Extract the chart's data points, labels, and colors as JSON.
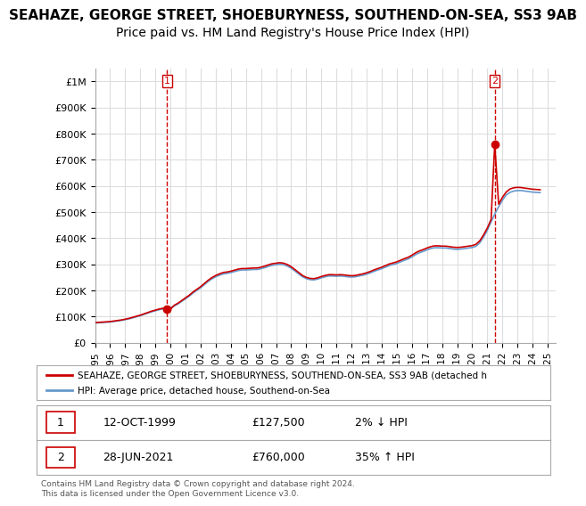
{
  "title": "SEAHAZE, GEORGE STREET, SHOEBURYNESS, SOUTHEND-ON-SEA, SS3 9AB",
  "subtitle": "Price paid vs. HM Land Registry's House Price Index (HPI)",
  "title_fontsize": 11,
  "subtitle_fontsize": 10,
  "ylim": [
    0,
    1050000
  ],
  "yticks": [
    0,
    100000,
    200000,
    300000,
    400000,
    500000,
    600000,
    700000,
    800000,
    900000,
    1000000
  ],
  "ytick_labels": [
    "£0",
    "£100K",
    "£200K",
    "£300K",
    "£400K",
    "£500K",
    "£600K",
    "£700K",
    "£800K",
    "£900K",
    "£1M"
  ],
  "xlim_start": 1995.0,
  "xlim_end": 2025.5,
  "xtick_years": [
    1995,
    1996,
    1997,
    1998,
    1999,
    2000,
    2001,
    2002,
    2003,
    2004,
    2005,
    2006,
    2007,
    2008,
    2009,
    2010,
    2011,
    2012,
    2013,
    2014,
    2015,
    2016,
    2017,
    2018,
    2019,
    2020,
    2021,
    2022,
    2023,
    2024,
    2025
  ],
  "sale1_x": 1999.78,
  "sale1_y": 127500,
  "sale1_label": "1",
  "sale1_date": "12-OCT-1999",
  "sale1_price": "£127,500",
  "sale1_hpi": "2% ↓ HPI",
  "sale2_x": 2021.49,
  "sale2_y": 760000,
  "sale2_label": "2",
  "sale2_date": "28-JUN-2021",
  "sale2_price": "£760,000",
  "sale2_hpi": "35% ↑ HPI",
  "vline1_x": 1999.78,
  "vline2_x": 2021.49,
  "red_line_color": "#cc0000",
  "blue_line_color": "#6699cc",
  "vline_color": "#cc0000",
  "grid_color": "#dddddd",
  "background_color": "#ffffff",
  "legend_label_red": "SEAHAZE, GEORGE STREET, SHOEBURYNESS, SOUTHEND-ON-SEA, SS3 9AB (detached h",
  "legend_label_blue": "HPI: Average price, detached house, Southend-on-Sea",
  "footnote": "Contains HM Land Registry data © Crown copyright and database right 2024.\nThis data is licensed under the Open Government Licence v3.0.",
  "hpi_x": [
    1995.0,
    1995.25,
    1995.5,
    1995.75,
    1996.0,
    1996.25,
    1996.5,
    1996.75,
    1997.0,
    1997.25,
    1997.5,
    1997.75,
    1998.0,
    1998.25,
    1998.5,
    1998.75,
    1999.0,
    1999.25,
    1999.5,
    1999.75,
    2000.0,
    2000.25,
    2000.5,
    2000.75,
    2001.0,
    2001.25,
    2001.5,
    2001.75,
    2002.0,
    2002.25,
    2002.5,
    2002.75,
    2003.0,
    2003.25,
    2003.5,
    2003.75,
    2004.0,
    2004.25,
    2004.5,
    2004.75,
    2005.0,
    2005.25,
    2005.5,
    2005.75,
    2006.0,
    2006.25,
    2006.5,
    2006.75,
    2007.0,
    2007.25,
    2007.5,
    2007.75,
    2008.0,
    2008.25,
    2008.5,
    2008.75,
    2009.0,
    2009.25,
    2009.5,
    2009.75,
    2010.0,
    2010.25,
    2010.5,
    2010.75,
    2011.0,
    2011.25,
    2011.5,
    2011.75,
    2012.0,
    2012.25,
    2012.5,
    2012.75,
    2013.0,
    2013.25,
    2013.5,
    2013.75,
    2014.0,
    2014.25,
    2014.5,
    2014.75,
    2015.0,
    2015.25,
    2015.5,
    2015.75,
    2016.0,
    2016.25,
    2016.5,
    2016.75,
    2017.0,
    2017.25,
    2017.5,
    2017.75,
    2018.0,
    2018.25,
    2018.5,
    2018.75,
    2019.0,
    2019.25,
    2019.5,
    2019.75,
    2020.0,
    2020.25,
    2020.5,
    2020.75,
    2021.0,
    2021.25,
    2021.5,
    2021.75,
    2022.0,
    2022.25,
    2022.5,
    2022.75,
    2023.0,
    2023.25,
    2023.5,
    2023.75,
    2024.0,
    2024.25,
    2024.5
  ],
  "hpi_y": [
    75000,
    76000,
    77000,
    78000,
    79000,
    81000,
    83000,
    85000,
    88000,
    91000,
    95000,
    99000,
    103000,
    108000,
    113000,
    118000,
    122000,
    126000,
    129000,
    130000,
    133000,
    140000,
    148000,
    158000,
    168000,
    178000,
    190000,
    200000,
    210000,
    222000,
    234000,
    244000,
    252000,
    258000,
    263000,
    265000,
    268000,
    272000,
    276000,
    278000,
    278000,
    279000,
    280000,
    280000,
    283000,
    287000,
    292000,
    296000,
    298000,
    300000,
    298000,
    293000,
    285000,
    274000,
    263000,
    252000,
    245000,
    241000,
    240000,
    243000,
    248000,
    252000,
    255000,
    255000,
    254000,
    255000,
    254000,
    252000,
    251000,
    252000,
    255000,
    258000,
    262000,
    267000,
    273000,
    278000,
    283000,
    289000,
    295000,
    299000,
    303000,
    309000,
    315000,
    320000,
    328000,
    337000,
    344000,
    349000,
    355000,
    360000,
    363000,
    363000,
    362000,
    362000,
    360000,
    358000,
    357000,
    358000,
    360000,
    362000,
    364000,
    369000,
    382000,
    404000,
    430000,
    462000,
    493000,
    520000,
    545000,
    565000,
    575000,
    580000,
    582000,
    582000,
    580000,
    578000,
    576000,
    575000,
    574000
  ],
  "red_x": [
    1995.0,
    1995.25,
    1995.5,
    1995.75,
    1996.0,
    1996.25,
    1996.5,
    1996.75,
    1997.0,
    1997.25,
    1997.5,
    1997.75,
    1998.0,
    1998.25,
    1998.5,
    1998.75,
    1999.0,
    1999.25,
    1999.5,
    1999.75,
    2000.0,
    2000.25,
    2000.5,
    2000.75,
    2001.0,
    2001.25,
    2001.5,
    2001.75,
    2002.0,
    2002.25,
    2002.5,
    2002.75,
    2003.0,
    2003.25,
    2003.5,
    2003.75,
    2004.0,
    2004.25,
    2004.5,
    2004.75,
    2005.0,
    2005.25,
    2005.5,
    2005.75,
    2006.0,
    2006.25,
    2006.5,
    2006.75,
    2007.0,
    2007.25,
    2007.5,
    2007.75,
    2008.0,
    2008.25,
    2008.5,
    2008.75,
    2009.0,
    2009.25,
    2009.5,
    2009.75,
    2010.0,
    2010.25,
    2010.5,
    2010.75,
    2011.0,
    2011.25,
    2011.5,
    2011.75,
    2012.0,
    2012.25,
    2012.5,
    2012.75,
    2013.0,
    2013.25,
    2013.5,
    2013.75,
    2014.0,
    2014.25,
    2014.5,
    2014.75,
    2015.0,
    2015.25,
    2015.5,
    2015.75,
    2016.0,
    2016.25,
    2016.5,
    2016.75,
    2017.0,
    2017.25,
    2017.5,
    2017.75,
    2018.0,
    2018.25,
    2018.5,
    2018.75,
    2019.0,
    2019.25,
    2019.5,
    2019.75,
    2020.0,
    2020.25,
    2020.5,
    2020.75,
    2021.0,
    2021.25,
    2021.49,
    2021.75,
    2022.0,
    2022.25,
    2022.5,
    2022.75,
    2023.0,
    2023.25,
    2023.5,
    2023.75,
    2024.0,
    2024.25,
    2024.5
  ],
  "red_y": [
    76500,
    77520,
    78540,
    79560,
    80580,
    82620,
    84660,
    86700,
    89760,
    92820,
    96900,
    100980,
    105060,
    110160,
    115260,
    120360,
    124440,
    128520,
    131580,
    132660,
    127500,
    142800,
    151000,
    161100,
    171400,
    181500,
    193800,
    204000,
    214200,
    226440,
    238680,
    248880,
    257040,
    263160,
    268260,
    270300,
    273360,
    277440,
    281520,
    283560,
    283560,
    284580,
    285600,
    285600,
    288660,
    292740,
    297840,
    301920,
    303960,
    306000,
    303960,
    298860,
    290700,
    279480,
    268260,
    257040,
    249900,
    245820,
    244800,
    247860,
    252960,
    257040,
    260100,
    260100,
    259080,
    260100,
    259080,
    257040,
    256020,
    257040,
    260100,
    263160,
    267240,
    272340,
    278460,
    283560,
    288660,
    294780,
    300900,
    304980,
    309060,
    315180,
    321300,
    326400,
    334560,
    343740,
    350880,
    355980,
    362100,
    367200,
    370260,
    370260,
    369240,
    369240,
    367200,
    365160,
    364140,
    365160,
    367200,
    369240,
    371280,
    376380,
    389640,
    412080,
    438600,
    471240,
    760000,
    529800,
    555900,
    576300,
    587700,
    592560,
    594204,
    593184,
    591144,
    589104,
    587064,
    586044,
    585024
  ],
  "marker1_x": 1999.78,
  "marker1_y": 127500,
  "marker2_x": 2021.49,
  "marker2_y": 760000
}
